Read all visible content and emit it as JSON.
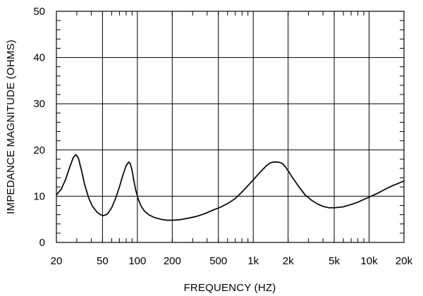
{
  "chart_data": {
    "type": "line",
    "title": "",
    "xlabel": "FREQUENCY  (HZ)",
    "ylabel": "IMPEDANCE MAGNITUDE  (OHMS)",
    "xscale": "log",
    "xlim": [
      20,
      20000
    ],
    "ylim": [
      0,
      50
    ],
    "grid": true,
    "legend": "none",
    "line_color": "#000000",
    "x_ticks": [
      {
        "value": 20,
        "label": "20"
      },
      {
        "value": 50,
        "label": "50"
      },
      {
        "value": 100,
        "label": "100"
      },
      {
        "value": 200,
        "label": "200"
      },
      {
        "value": 500,
        "label": "500"
      },
      {
        "value": 1000,
        "label": "1k"
      },
      {
        "value": 2000,
        "label": "2k"
      },
      {
        "value": 5000,
        "label": "5k"
      },
      {
        "value": 10000,
        "label": "10k"
      },
      {
        "value": 20000,
        "label": "20k"
      }
    ],
    "y_ticks": [
      {
        "value": 0,
        "label": "0"
      },
      {
        "value": 10,
        "label": "10"
      },
      {
        "value": 20,
        "label": "20"
      },
      {
        "value": 30,
        "label": "30"
      },
      {
        "value": 40,
        "label": "40"
      },
      {
        "value": 50,
        "label": "50"
      }
    ],
    "series": [
      {
        "x": [
          20,
          22,
          24,
          26,
          28,
          29.5,
          31,
          33,
          35,
          38,
          41,
          45,
          48,
          51,
          55,
          60,
          65,
          70,
          75,
          80,
          84,
          87,
          90,
          93,
          97,
          102,
          108,
          115,
          125,
          140,
          160,
          180,
          200,
          230,
          270,
          320,
          380,
          450,
          520,
          600,
          700,
          800,
          900,
          1000,
          1100,
          1200,
          1300,
          1400,
          1500,
          1600,
          1700,
          1800,
          1900,
          2000,
          2200,
          2500,
          2800,
          3200,
          3600,
          4000,
          4500,
          5000,
          6000,
          7000,
          8000,
          9000,
          10000,
          12000,
          14000,
          16000,
          18000,
          20000
        ],
        "y": [
          10.3,
          11.5,
          13.6,
          16.2,
          18.4,
          19.0,
          18.2,
          15.5,
          12.6,
          9.6,
          7.8,
          6.5,
          6.0,
          5.8,
          6.1,
          7.5,
          9.6,
          12.0,
          14.6,
          16.6,
          17.4,
          17.0,
          15.6,
          13.5,
          11.2,
          9.3,
          7.8,
          6.8,
          6.0,
          5.4,
          5.0,
          4.8,
          4.8,
          4.9,
          5.2,
          5.6,
          6.2,
          7.0,
          7.6,
          8.4,
          9.5,
          10.9,
          12.3,
          13.5,
          14.7,
          15.7,
          16.6,
          17.2,
          17.4,
          17.4,
          17.3,
          17.0,
          16.3,
          15.5,
          13.9,
          11.9,
          10.3,
          9.1,
          8.3,
          7.8,
          7.5,
          7.5,
          7.7,
          8.2,
          8.7,
          9.3,
          9.8,
          10.7,
          11.6,
          12.3,
          12.8,
          13.3
        ]
      }
    ]
  }
}
